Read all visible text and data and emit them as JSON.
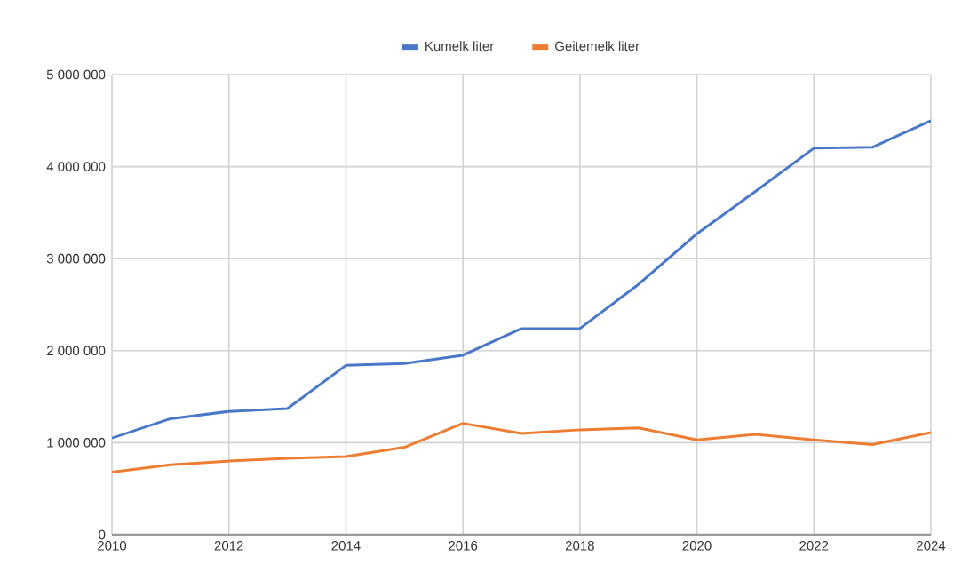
{
  "chart_data": {
    "type": "line",
    "x": [
      2010,
      2011,
      2012,
      2013,
      2014,
      2015,
      2016,
      2017,
      2018,
      2019,
      2020,
      2021,
      2022,
      2023,
      2024
    ],
    "series": [
      {
        "name": "Kumelk liter",
        "color": "#4a78c8",
        "values": [
          1050000,
          1260000,
          1340000,
          1370000,
          1840000,
          1860000,
          1950000,
          2240000,
          2240000,
          2720000,
          3270000,
          3730000,
          4200000,
          4210000,
          4500000
        ]
      },
      {
        "name": "Geitemelk liter",
        "color": "#ed7d31",
        "values": [
          680000,
          760000,
          800000,
          830000,
          850000,
          950000,
          1210000,
          1100000,
          1140000,
          1160000,
          1030000,
          1090000,
          1030000,
          980000,
          1110000
        ]
      }
    ],
    "xlim": [
      2010,
      2024
    ],
    "xticks": [
      2010,
      2012,
      2014,
      2016,
      2018,
      2020,
      2022,
      2024
    ],
    "ylim": [
      0,
      5000000
    ],
    "yticks": [
      0,
      {
        "value": 1000000,
        "label": "1 000 000"
      },
      {
        "value": 2000000,
        "label": "2 000 000"
      },
      {
        "value": 3000000,
        "label": "3 000 000"
      },
      {
        "value": 4000000,
        "label": "4 000 000"
      },
      {
        "value": 5000000,
        "label": "5 000 000"
      }
    ],
    "grid": true,
    "legend": "top",
    "marker": "none",
    "line_style": "solid"
  }
}
